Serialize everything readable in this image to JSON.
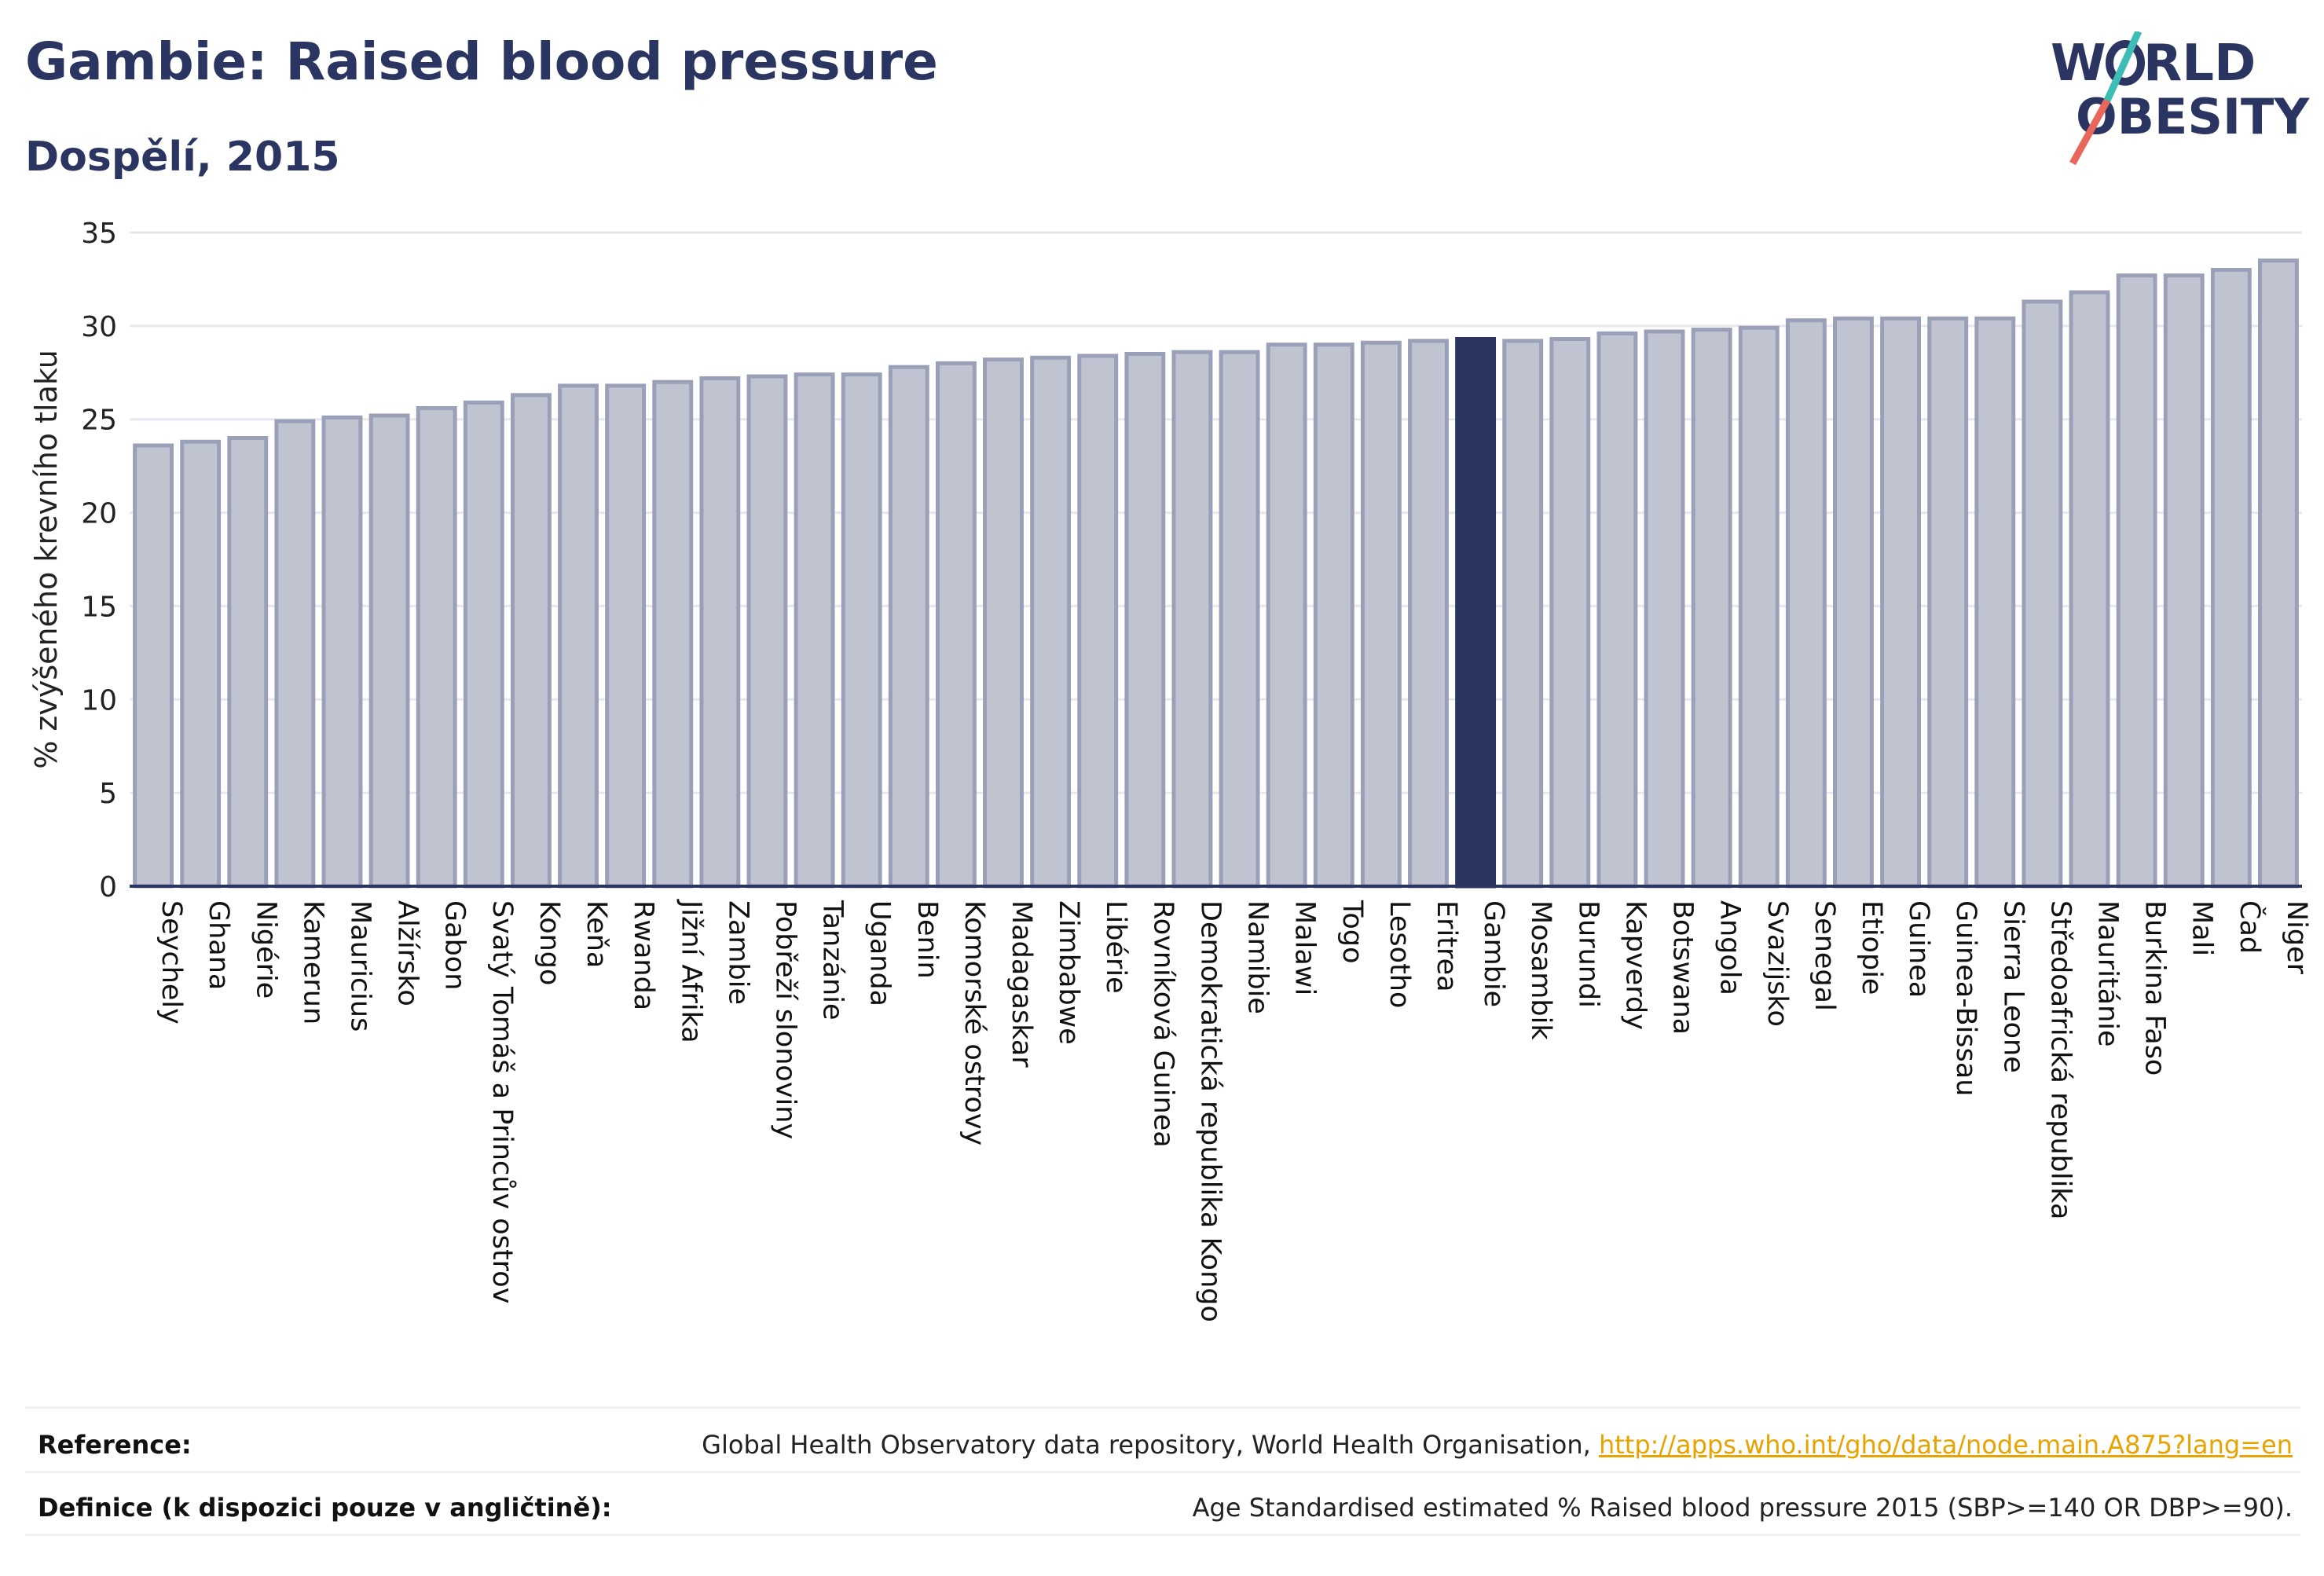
{
  "header": {
    "title": "Gambie: Raised blood pressure",
    "subtitle": "Dospělí, 2015"
  },
  "logo": {
    "line1_part1": "W",
    "line1_part2": "RLD",
    "line2": "OBESITY",
    "slash_colors": [
      "#3dbdb5",
      "#e8665a"
    ],
    "text_color": "#2b3561"
  },
  "colors": {
    "bar_fill": "#c0c4d1",
    "bar_stroke": "#9aa0b8",
    "highlight": "#2b3561",
    "axis": "#2b3561",
    "grid": "#e6e8ee",
    "link": "#e8a300"
  },
  "chart_data": {
    "type": "bar",
    "ylabel": "% zvýšeného krevního tlaku",
    "xlabel": "",
    "ylim": [
      0,
      35
    ],
    "yticks": [
      "0",
      "5",
      "10",
      "15",
      "20",
      "25",
      "30",
      "35"
    ],
    "grid": true,
    "highlight": "Gambie",
    "categories": [
      "Seychely",
      "Ghana",
      "Nigérie",
      "Kamerun",
      "Mauricius",
      "Alžírsko",
      "Gabon",
      "Svatý Tomáš a Princův ostrov",
      "Kongo",
      "Keňa",
      "Rwanda",
      "Jižní Afrika",
      "Zambie",
      "Pobřeží slonoviny",
      "Tanzánie",
      "Uganda",
      "Benin",
      "Komorské ostrovy",
      "Madagaskar",
      "Zimbabwe",
      "Libérie",
      "Rovníková Guinea",
      "Demokratická republika Kongo",
      "Namibie",
      "Malawi",
      "Togo",
      "Lesotho",
      "Eritrea",
      "Gambie",
      "Mosambik",
      "Burundi",
      "Kapverdy",
      "Botswana",
      "Angola",
      "Svazijsko",
      "Senegal",
      "Etiopie",
      "Guinea",
      "Guinea-Bissau",
      "Sierra Leone",
      "Středoafrická republika",
      "Mauritánie",
      "Burkina Faso",
      "Mali",
      "Čad",
      "Niger"
    ],
    "values": [
      23.6,
      23.8,
      24.0,
      24.9,
      25.1,
      25.2,
      25.6,
      25.9,
      26.3,
      26.8,
      26.8,
      27.0,
      27.2,
      27.3,
      27.4,
      27.4,
      27.8,
      28.0,
      28.2,
      28.3,
      28.4,
      28.5,
      28.6,
      28.6,
      29.0,
      29.0,
      29.1,
      29.2,
      29.3,
      29.2,
      29.3,
      29.6,
      29.7,
      29.8,
      29.9,
      30.3,
      30.4,
      30.4,
      30.4,
      30.4,
      31.3,
      31.8,
      32.7,
      32.7,
      33.0,
      33.5
    ]
  },
  "footer": {
    "reference_label": "Reference:",
    "reference_text": "Global Health Observatory data repository, World Health Organisation, ",
    "reference_link": "http://apps.who.int/gho/data/node.main.A875?lang=en",
    "definition_label": "Definice (k dispozici pouze v angličtině):",
    "definition_text": "Age Standardised estimated % Raised blood pressure 2015 (SBP>=140 OR DBP>=90)."
  }
}
